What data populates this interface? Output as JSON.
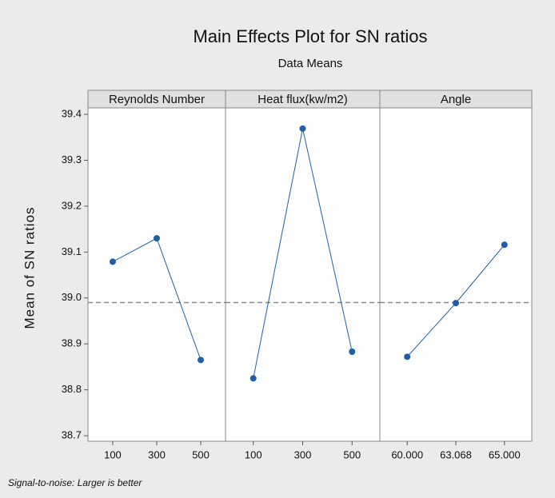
{
  "chart_data": {
    "type": "line",
    "title": "Main Effects Plot for SN ratios",
    "subtitle": "Data Means",
    "ylabel": "Mean of SN ratios",
    "footnote": "Signal-to-noise: Larger is better",
    "color": "#1f5fa8",
    "panels": [
      {
        "title": "Reynolds Number",
        "categories": [
          "100",
          "300",
          "500"
        ],
        "values": [
          39.079,
          39.13,
          38.865
        ]
      },
      {
        "title": "Heat flux(kw/m2)",
        "categories": [
          "100",
          "300",
          "500"
        ],
        "values": [
          38.825,
          39.369,
          38.883
        ]
      },
      {
        "title": "Angle",
        "categories": [
          "60.000",
          "63.068",
          "65.000"
        ],
        "values": [
          38.872,
          38.989,
          39.116
        ]
      }
    ],
    "reference_line": 38.99,
    "ylim": [
      38.688,
      39.414
    ],
    "yticks": [
      {
        "value": 38.7,
        "label": "38.7"
      },
      {
        "value": 38.8,
        "label": "38.8"
      },
      {
        "value": 38.9,
        "label": "38.9"
      },
      {
        "value": 39.0,
        "label": "39.0"
      },
      {
        "value": 39.1,
        "label": "39.1"
      },
      {
        "value": 39.2,
        "label": "39.2"
      },
      {
        "value": 39.3,
        "label": "39.3"
      },
      {
        "value": 39.4,
        "label": "39.4"
      }
    ]
  }
}
